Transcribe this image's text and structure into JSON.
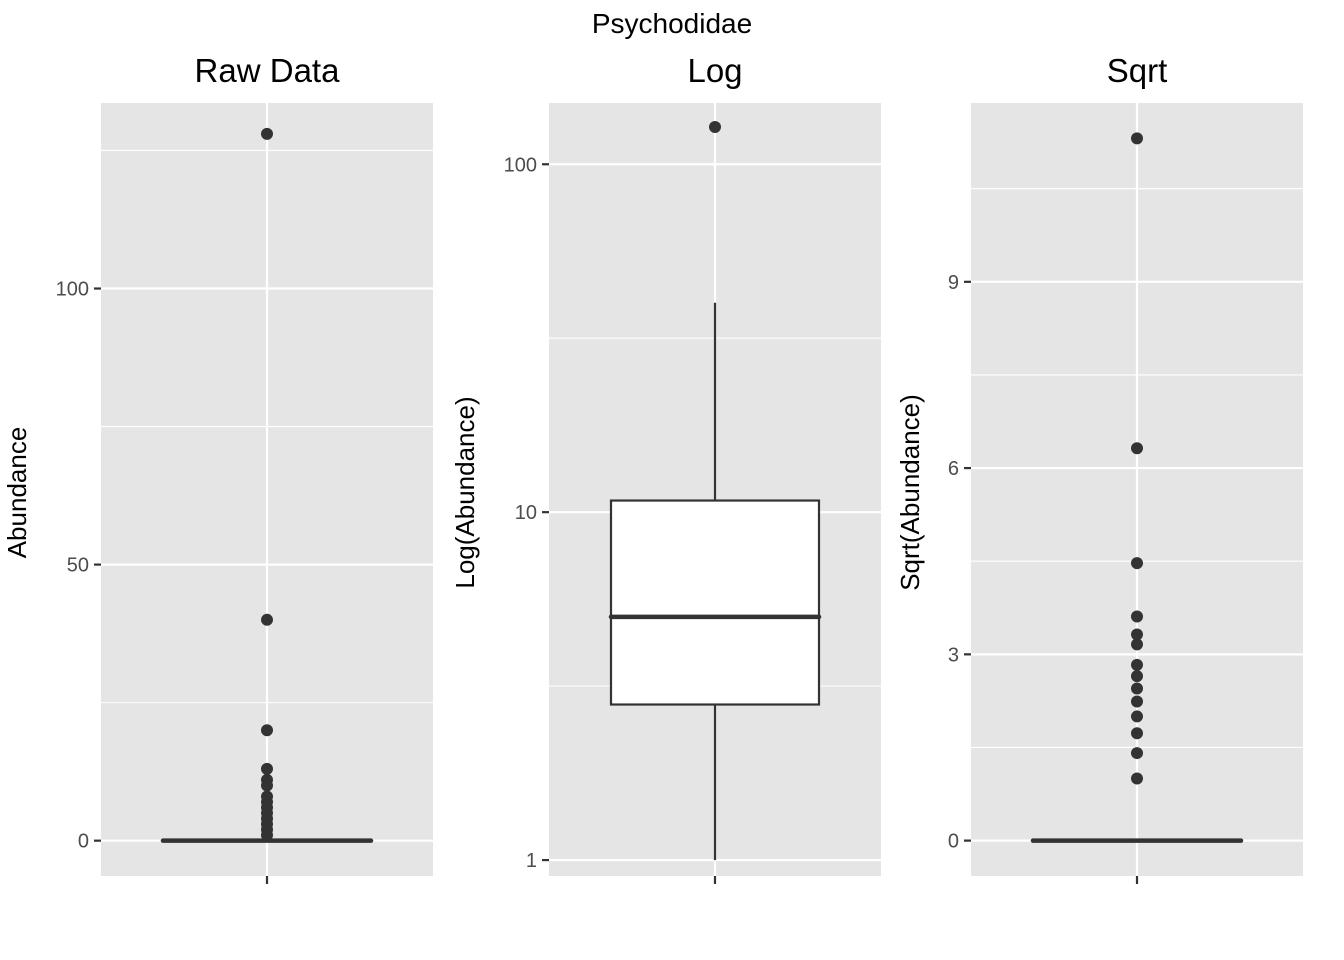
{
  "title": "Psychodidae",
  "chart_data": [
    {
      "type": "boxplot",
      "title": "Raw Data",
      "ylabel": "Abundance",
      "xlabel": "",
      "scale": "linear",
      "ylim": [
        -6.4,
        133.6
      ],
      "yticks": [
        0,
        50,
        100
      ],
      "ytick_labels": [
        "0",
        "50",
        "100"
      ],
      "box": {
        "min": 0,
        "q1": 0,
        "median": 0,
        "q3": 0,
        "max": 0
      },
      "outliers": [
        128,
        40,
        20,
        13,
        11,
        10,
        8,
        7,
        6,
        5,
        4,
        3,
        2,
        1
      ],
      "grid": true
    },
    {
      "type": "boxplot",
      "title": "Log",
      "ylabel": "Log(Abundance)",
      "xlabel": "",
      "scale": "log10",
      "ylim": [
        0.9,
        150
      ],
      "yticks": [
        1,
        10,
        100
      ],
      "ytick_labels": [
        "1",
        "10",
        "100"
      ],
      "box": {
        "min": 1,
        "q1": 2.8,
        "median": 5,
        "q3": 10.8,
        "max": 40
      },
      "outliers": [
        128
      ],
      "grid": true
    },
    {
      "type": "boxplot",
      "title": "Sqrt",
      "ylabel": "Sqrt(Abundance)",
      "xlabel": "",
      "scale": "sqrt",
      "ylim": [
        -0.57,
        11.88
      ],
      "yticks": [
        0,
        3,
        6,
        9
      ],
      "ytick_labels": [
        "0",
        "3",
        "6",
        "9"
      ],
      "box": {
        "min": 0,
        "q1": 0,
        "median": 0,
        "q3": 0,
        "max": 0
      },
      "outliers": [
        11.31,
        6.32,
        4.47,
        3.61,
        3.32,
        3.16,
        2.83,
        2.65,
        2.45,
        2.24,
        2.0,
        1.73,
        1.41,
        1.0
      ],
      "grid": true
    }
  ]
}
